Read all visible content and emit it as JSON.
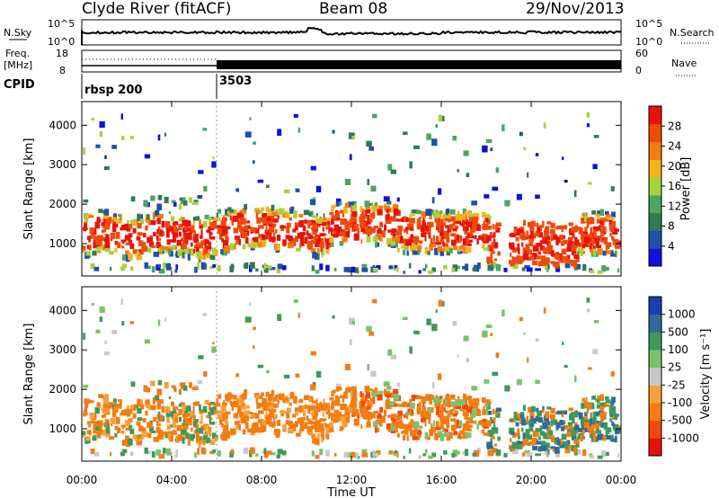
{
  "header": {
    "station": "Clyde River (fitACF)",
    "beam": "Beam 08",
    "date": "29/Nov/2013"
  },
  "status_panel": {
    "nsky_label": "N.Sky",
    "nsky_ticks": [
      "10^5",
      "10^0"
    ],
    "nsearch_label": "N.Search",
    "nsearch_ticks": [
      "10^5",
      "10^0"
    ],
    "freq_label": "Freq.",
    "freq_unit": "[MHz]",
    "freq_ticks": [
      "18",
      "8"
    ],
    "nave_label": "Nave",
    "nave_ticks": [
      "60",
      "0"
    ],
    "cpid_label": "CPID",
    "cpid_segments": [
      {
        "start_hour": 0,
        "label": "rbsp 200"
      },
      {
        "start_hour": 6,
        "label": "3503"
      }
    ]
  },
  "colors": {
    "power_scale": [
      "#1010e0",
      "#1f4fa8",
      "#2f7a55",
      "#4ba564",
      "#a8d23a",
      "#f6b21a",
      "#f47c10",
      "#f04a0a",
      "#e8120a"
    ],
    "velocity_scale": [
      "#e8120a",
      "#f04a0a",
      "#f47c10",
      "#f6a13a",
      "#c8c8c8",
      "#7cc26a",
      "#3c9a5a",
      "#2f6a9a",
      "#1a3fb0"
    ]
  },
  "chart_data": [
    {
      "type": "heatmap",
      "name": "power",
      "x_range_hours": [
        0,
        24
      ],
      "xticks": [
        "00:00",
        "04:00",
        "08:00",
        "12:00",
        "16:00",
        "20:00",
        "00:00"
      ],
      "ylabel": "Slant Range [km]",
      "ylim": [
        180,
        4600
      ],
      "yticks": [
        1000,
        2000,
        3000,
        4000
      ],
      "colorbar_label": "Power [dB]",
      "colorbar_ticks": [
        "4",
        "8",
        "12",
        "16",
        "20",
        "24",
        "28"
      ],
      "color_range": [
        0,
        32
      ]
    },
    {
      "type": "heatmap",
      "name": "velocity",
      "x_range_hours": [
        0,
        24
      ],
      "xticks": [
        "00:00",
        "04:00",
        "08:00",
        "12:00",
        "16:00",
        "20:00",
        "00:00"
      ],
      "xlabel": "Time UT",
      "ylabel": "Slant Range [km]",
      "ylim": [
        180,
        4600
      ],
      "yticks": [
        1000,
        2000,
        3000,
        4000
      ],
      "colorbar_label": "Velocity [m s⁻¹]",
      "colorbar_ticks": [
        "1000",
        "500",
        "100",
        "25",
        "-25",
        "-100",
        "-500",
        "-1000"
      ]
    }
  ]
}
